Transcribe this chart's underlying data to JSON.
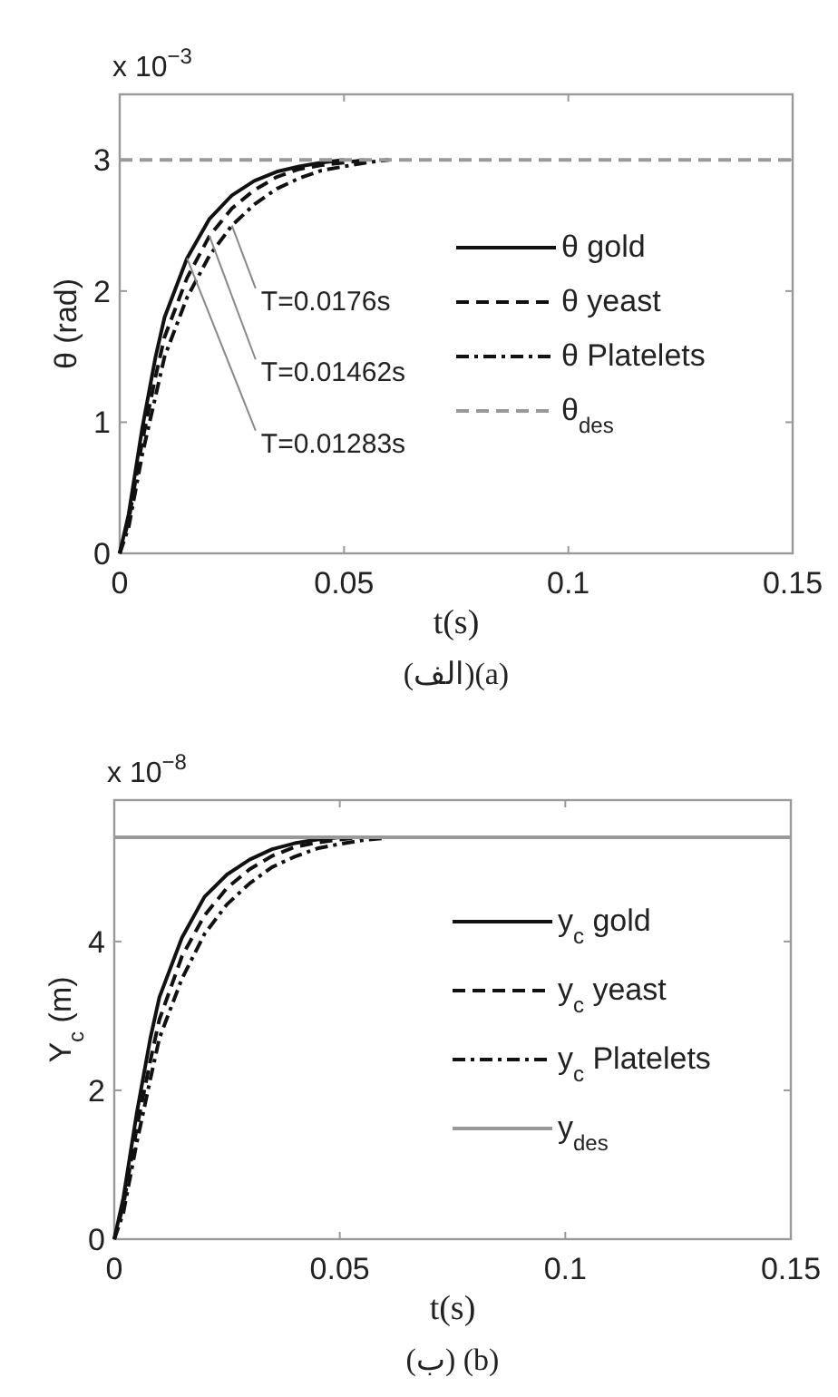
{
  "chart_data": [
    {
      "type": "line",
      "xlabel": "t(s)",
      "ylabel": "θ (rad)",
      "xlim": [
        0,
        0.15
      ],
      "ylim": [
        0,
        3.5
      ],
      "xticks": [
        0,
        0.05,
        0.1,
        0.15
      ],
      "yticks": [
        0,
        1,
        2,
        3
      ],
      "grid": false,
      "legend": "right",
      "series": [
        {
          "name": "θ gold",
          "color": "#111111",
          "line_style": "solid",
          "x": [
            0,
            0.002,
            0.005,
            0.008,
            0.01,
            0.015,
            0.02,
            0.025,
            0.03,
            0.035,
            0.04,
            0.045,
            0.05
          ],
          "values": [
            0,
            0.3,
            0.95,
            1.5,
            1.8,
            2.25,
            2.55,
            2.73,
            2.84,
            2.91,
            2.95,
            2.98,
            3
          ]
        },
        {
          "name": "θ yeast",
          "color": "#111111",
          "line_style": "dashed",
          "x": [
            0,
            0.002,
            0.005,
            0.008,
            0.01,
            0.015,
            0.02,
            0.025,
            0.03,
            0.035,
            0.04,
            0.045,
            0.05,
            0.055
          ],
          "values": [
            0,
            0.25,
            0.85,
            1.35,
            1.65,
            2.1,
            2.42,
            2.63,
            2.77,
            2.87,
            2.93,
            2.96,
            2.98,
            3
          ]
        },
        {
          "name": "θ Platelets",
          "color": "#111111",
          "line_style": "dashdot",
          "x": [
            0,
            0.002,
            0.005,
            0.008,
            0.01,
            0.015,
            0.02,
            0.025,
            0.03,
            0.035,
            0.04,
            0.045,
            0.05,
            0.055,
            0.06
          ],
          "values": [
            0,
            0.2,
            0.75,
            1.2,
            1.5,
            1.95,
            2.27,
            2.5,
            2.66,
            2.78,
            2.86,
            2.92,
            2.95,
            2.98,
            3
          ]
        },
        {
          "name": "θ$_{des}$",
          "color": "#999999",
          "line_style": "dashed",
          "x": [
            0,
            0.15
          ],
          "values": [
            3,
            3
          ]
        }
      ],
      "annotations": [
        "x 10$^{−3}$",
        "(الف)(a)",
        {
          "text": "T=0.0176s",
          "x": 0.025,
          "y": 2.5
        },
        {
          "text": "T=0.01462s",
          "x": 0.02,
          "y": 2.42
        },
        {
          "text": "T=0.01283s",
          "x": 0.015,
          "y": 2.25
        }
      ]
    },
    {
      "type": "line",
      "xlabel": "t(s)",
      "ylabel": "Y$_{c}$ (m)",
      "xlim": [
        0,
        0.15
      ],
      "ylim": [
        0,
        5.9
      ],
      "xticks": [
        0,
        0.05,
        0.1,
        0.15
      ],
      "yticks": [
        0,
        2,
        4
      ],
      "grid": false,
      "legend": "right",
      "series": [
        {
          "name": "y$_{c}$ gold",
          "color": "#111111",
          "line_style": "solid",
          "x": [
            0,
            0.002,
            0.005,
            0.008,
            0.01,
            0.015,
            0.02,
            0.025,
            0.03,
            0.035,
            0.04,
            0.045,
            0.05
          ],
          "values": [
            0,
            0.55,
            1.7,
            2.7,
            3.25,
            4.05,
            4.6,
            4.9,
            5.1,
            5.24,
            5.32,
            5.37,
            5.4
          ]
        },
        {
          "name": "y$_{c}$ yeast",
          "color": "#111111",
          "line_style": "dashed",
          "x": [
            0,
            0.002,
            0.005,
            0.008,
            0.01,
            0.015,
            0.02,
            0.025,
            0.03,
            0.035,
            0.04,
            0.045,
            0.05,
            0.055
          ],
          "values": [
            0,
            0.45,
            1.5,
            2.4,
            2.95,
            3.8,
            4.35,
            4.72,
            4.97,
            5.15,
            5.27,
            5.33,
            5.37,
            5.4
          ]
        },
        {
          "name": "y$_{c}$ Platelets",
          "color": "#111111",
          "line_style": "dashdot",
          "x": [
            0,
            0.002,
            0.005,
            0.008,
            0.01,
            0.015,
            0.02,
            0.025,
            0.03,
            0.035,
            0.04,
            0.045,
            0.05,
            0.055,
            0.06
          ],
          "values": [
            0,
            0.35,
            1.3,
            2.15,
            2.7,
            3.5,
            4.1,
            4.5,
            4.78,
            5.0,
            5.14,
            5.25,
            5.31,
            5.36,
            5.39
          ]
        },
        {
          "name": "y$_{des}$",
          "color": "#999999",
          "line_style": "solid",
          "x": [
            0,
            0.15
          ],
          "values": [
            5.4,
            5.4
          ]
        }
      ],
      "annotations": [
        "x 10$^{−8}$",
        "(ب) (b)"
      ]
    }
  ]
}
